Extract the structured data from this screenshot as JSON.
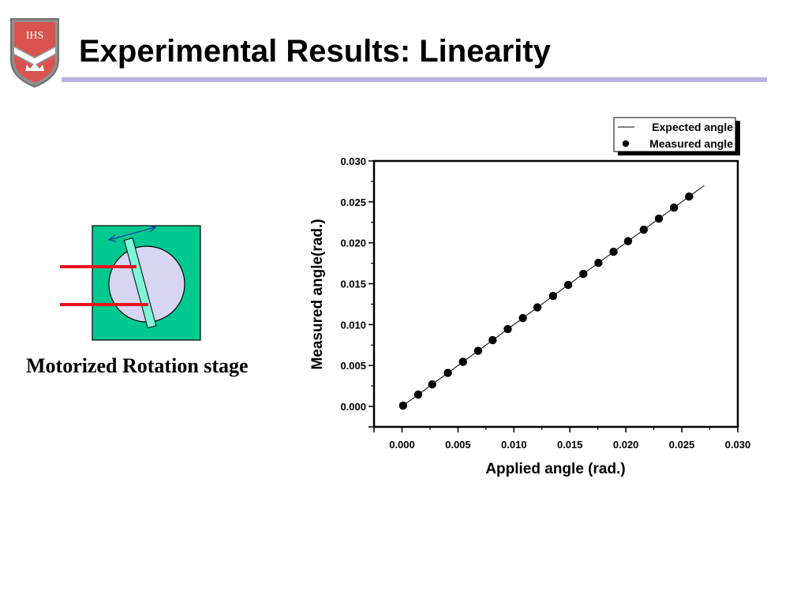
{
  "slide": {
    "title": "Experimental Results: Linearity",
    "caption": "Motorized Rotation stage",
    "logo_text": "IHS"
  },
  "colors": {
    "title_rule": "#b7b0e0",
    "logo_fill": "#d9534f",
    "stage_plate": "#00c98f",
    "stage_disc": "#d6d6f2",
    "stage_sample": "#7ff7d8",
    "beam": "#e8141b",
    "rotation_arrow": "#1a3fa3",
    "marker": "#000000"
  },
  "chart_data": {
    "type": "scatter",
    "xlabel": "Applied angle (rad.)",
    "ylabel": "Measured angle(rad.)",
    "xlim": [
      -0.0025,
      0.03
    ],
    "ylim": [
      -0.0025,
      0.03
    ],
    "x_ticks": [
      "0.000",
      "0.005",
      "0.010",
      "0.015",
      "0.020",
      "0.025",
      "0.030"
    ],
    "y_ticks": [
      "0.000",
      "0.005",
      "0.010",
      "0.015",
      "0.020",
      "0.025",
      "0.030"
    ],
    "grid": false,
    "legend_position": "top-right",
    "series": [
      {
        "name": "Expected angle",
        "style": "line",
        "x": [
          0.0,
          0.027
        ],
        "y": [
          0.0,
          0.027
        ]
      },
      {
        "name": "Measured angle",
        "style": "marker",
        "x": [
          0.0001,
          0.00145,
          0.0027,
          0.0041,
          0.00545,
          0.0068,
          0.0081,
          0.00945,
          0.0108,
          0.0121,
          0.0135,
          0.01485,
          0.0162,
          0.01755,
          0.0189,
          0.0202,
          0.0216,
          0.02295,
          0.0243,
          0.02565
        ],
        "y": [
          0.0001,
          0.00145,
          0.0027,
          0.0041,
          0.00545,
          0.0068,
          0.0081,
          0.00945,
          0.0108,
          0.0121,
          0.0135,
          0.01485,
          0.0162,
          0.01755,
          0.0189,
          0.0202,
          0.0216,
          0.02295,
          0.0243,
          0.02565
        ]
      }
    ]
  }
}
